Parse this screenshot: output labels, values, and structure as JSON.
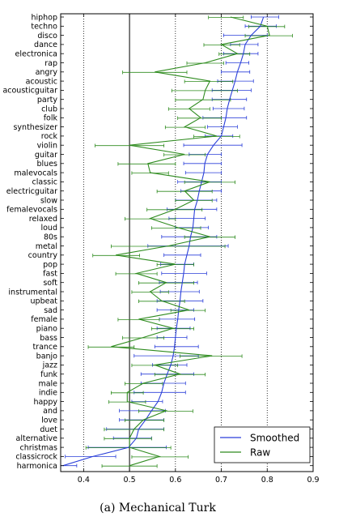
{
  "chart_data": {
    "type": "line",
    "orientation": "horizontal",
    "caption": "(a) Mechanical Turk",
    "categories": [
      "hiphop",
      "techno",
      "disco",
      "dance",
      "electronica",
      "rap",
      "angry",
      "acoustic",
      "acousticguitar",
      "party",
      "club",
      "folk",
      "synthesizer",
      "rock",
      "violin",
      "guitar",
      "blues",
      "malevocals",
      "classic",
      "electricguitar",
      "slow",
      "femalevocals",
      "relaxed",
      "loud",
      "80s",
      "metal",
      "country",
      "pop",
      "fast",
      "soft",
      "instrumental",
      "upbeat",
      "sad",
      "female",
      "piano",
      "bass",
      "trance",
      "banjo",
      "jazz",
      "funk",
      "male",
      "indie",
      "happy",
      "and",
      "love",
      "duet",
      "alternative",
      "christmas",
      "classicrock",
      "harmonica"
    ],
    "xlim": [
      0.35,
      0.9
    ],
    "xticks": [
      0.4,
      0.5,
      0.6,
      0.7,
      0.8,
      0.9
    ],
    "xtick_labels": [
      "0.4",
      "0.5",
      "0.6",
      "0.7",
      "0.8",
      "0.9"
    ],
    "dotted_vlines": [
      0.4,
      0.6,
      0.7,
      0.8
    ],
    "solid_vline": 0.5,
    "legend": {
      "position": "lower-right"
    },
    "series": [
      {
        "name": "Smoothed",
        "color": "#2a3fd9",
        "values": [
          0.792,
          0.785,
          0.765,
          0.752,
          0.748,
          0.742,
          0.735,
          0.73,
          0.724,
          0.718,
          0.713,
          0.71,
          0.705,
          0.7,
          0.683,
          0.67,
          0.664,
          0.662,
          0.657,
          0.652,
          0.648,
          0.642,
          0.64,
          0.638,
          0.633,
          0.63,
          0.625,
          0.62,
          0.618,
          0.615,
          0.612,
          0.61,
          0.607,
          0.605,
          0.602,
          0.6,
          0.598,
          0.595,
          0.59,
          0.582,
          0.575,
          0.57,
          0.562,
          0.548,
          0.535,
          0.52,
          0.515,
          0.498,
          0.42,
          0.355
        ],
        "err_low": [
          0.765,
          0.752,
          0.705,
          0.72,
          0.705,
          0.71,
          0.7,
          0.692,
          0.68,
          0.68,
          0.682,
          0.66,
          0.67,
          0.665,
          0.618,
          0.63,
          0.618,
          0.622,
          0.605,
          0.612,
          0.6,
          0.582,
          0.586,
          0.6,
          0.57,
          0.54,
          0.575,
          0.568,
          0.57,
          0.565,
          0.567,
          0.56,
          0.56,
          0.565,
          0.56,
          0.56,
          0.555,
          0.51,
          0.55,
          0.525,
          0.525,
          0.51,
          0.505,
          0.478,
          0.478,
          0.45,
          0.465,
          0.41,
          0.36,
          0.35
        ],
        "err_high": [
          0.825,
          0.82,
          0.8,
          0.78,
          0.78,
          0.76,
          0.762,
          0.77,
          0.765,
          0.755,
          0.75,
          0.755,
          0.735,
          0.725,
          0.745,
          0.7,
          0.7,
          0.7,
          0.7,
          0.7,
          0.69,
          0.69,
          0.665,
          0.672,
          0.69,
          0.715,
          0.655,
          0.64,
          0.668,
          0.648,
          0.652,
          0.66,
          0.64,
          0.642,
          0.632,
          0.625,
          0.65,
          0.65,
          0.625,
          0.64,
          0.622,
          0.622,
          0.572,
          0.578,
          0.575,
          0.575,
          0.548,
          0.58,
          0.47,
          0.385
        ]
      },
      {
        "name": "Raw",
        "color": "#2e8b1e",
        "values": [
          0.72,
          0.8,
          0.805,
          0.7,
          0.735,
          0.665,
          0.555,
          0.675,
          0.665,
          0.66,
          0.63,
          0.655,
          0.62,
          0.69,
          0.5,
          0.62,
          0.54,
          0.545,
          0.675,
          0.62,
          0.64,
          0.6,
          0.545,
          0.605,
          0.675,
          0.585,
          0.47,
          0.6,
          0.515,
          0.58,
          0.545,
          0.57,
          0.63,
          0.52,
          0.595,
          0.53,
          0.46,
          0.68,
          0.555,
          0.61,
          0.53,
          0.495,
          0.495,
          0.58,
          0.53,
          0.51,
          0.5,
          0.5,
          0.565,
          0.5
        ],
        "err_low": [
          0.672,
          0.76,
          0.752,
          0.662,
          0.695,
          0.625,
          0.485,
          0.62,
          0.592,
          0.6,
          0.585,
          0.605,
          0.578,
          0.64,
          0.425,
          0.575,
          0.475,
          0.505,
          0.62,
          0.56,
          0.6,
          0.538,
          0.49,
          0.548,
          0.62,
          0.46,
          0.42,
          0.56,
          0.47,
          0.52,
          0.505,
          0.52,
          0.59,
          0.475,
          0.548,
          0.485,
          0.41,
          0.61,
          0.505,
          0.555,
          0.49,
          0.46,
          0.455,
          0.52,
          0.49,
          0.445,
          0.445,
          0.405,
          0.505,
          0.44
        ],
        "err_high": [
          0.748,
          0.838,
          0.855,
          0.74,
          0.762,
          0.705,
          0.625,
          0.725,
          0.735,
          0.72,
          0.675,
          0.7,
          0.665,
          0.74,
          0.575,
          0.665,
          0.6,
          0.585,
          0.73,
          0.68,
          0.68,
          0.658,
          0.6,
          0.655,
          0.73,
          0.708,
          0.522,
          0.64,
          0.56,
          0.64,
          0.585,
          0.62,
          0.665,
          0.565,
          0.64,
          0.575,
          0.51,
          0.745,
          0.605,
          0.665,
          0.572,
          0.53,
          0.535,
          0.638,
          0.575,
          0.575,
          0.548,
          0.59,
          0.628,
          0.56
        ]
      }
    ]
  }
}
